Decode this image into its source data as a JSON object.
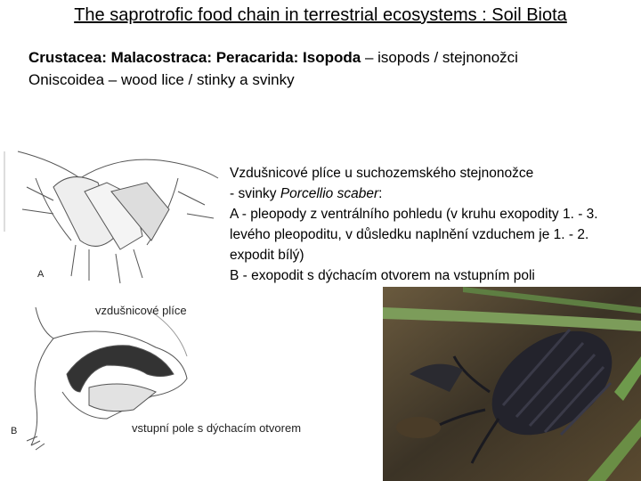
{
  "header": {
    "title": "The saprotrofic food chain in terrestrial ecosystems : Soil Biota"
  },
  "taxonomy": {
    "line1": {
      "bold": "Crustacea: Malacostraca: Peracarida: Isopoda",
      "rest": " – isopods / stejnonožci"
    },
    "line2": "Oniscoidea – wood lice / stinky a svinky"
  },
  "description": {
    "lines": [
      {
        "text": "Vzdušnicové plíce u suchozemského stejnonožce"
      },
      {
        "before": "- svinky ",
        "italic": "Porcellio scaber",
        "after": ":"
      },
      {
        "text": "A - pleopody z ventrálního pohledu (v kruhu exopodity 1. - 3. levého pleopoditu, v důsledku naplnění vzduchem je 1. - 2. expodit bílý)"
      },
      {
        "text": "B - exopodit s dýchacím otvorem na vstupním poli"
      }
    ]
  },
  "figures": {
    "a_label": "A",
    "b_label": "B",
    "lung_label": "vzdušnicové plíce",
    "opening_label": "vstupní pole s dýchacím otvorem"
  }
}
